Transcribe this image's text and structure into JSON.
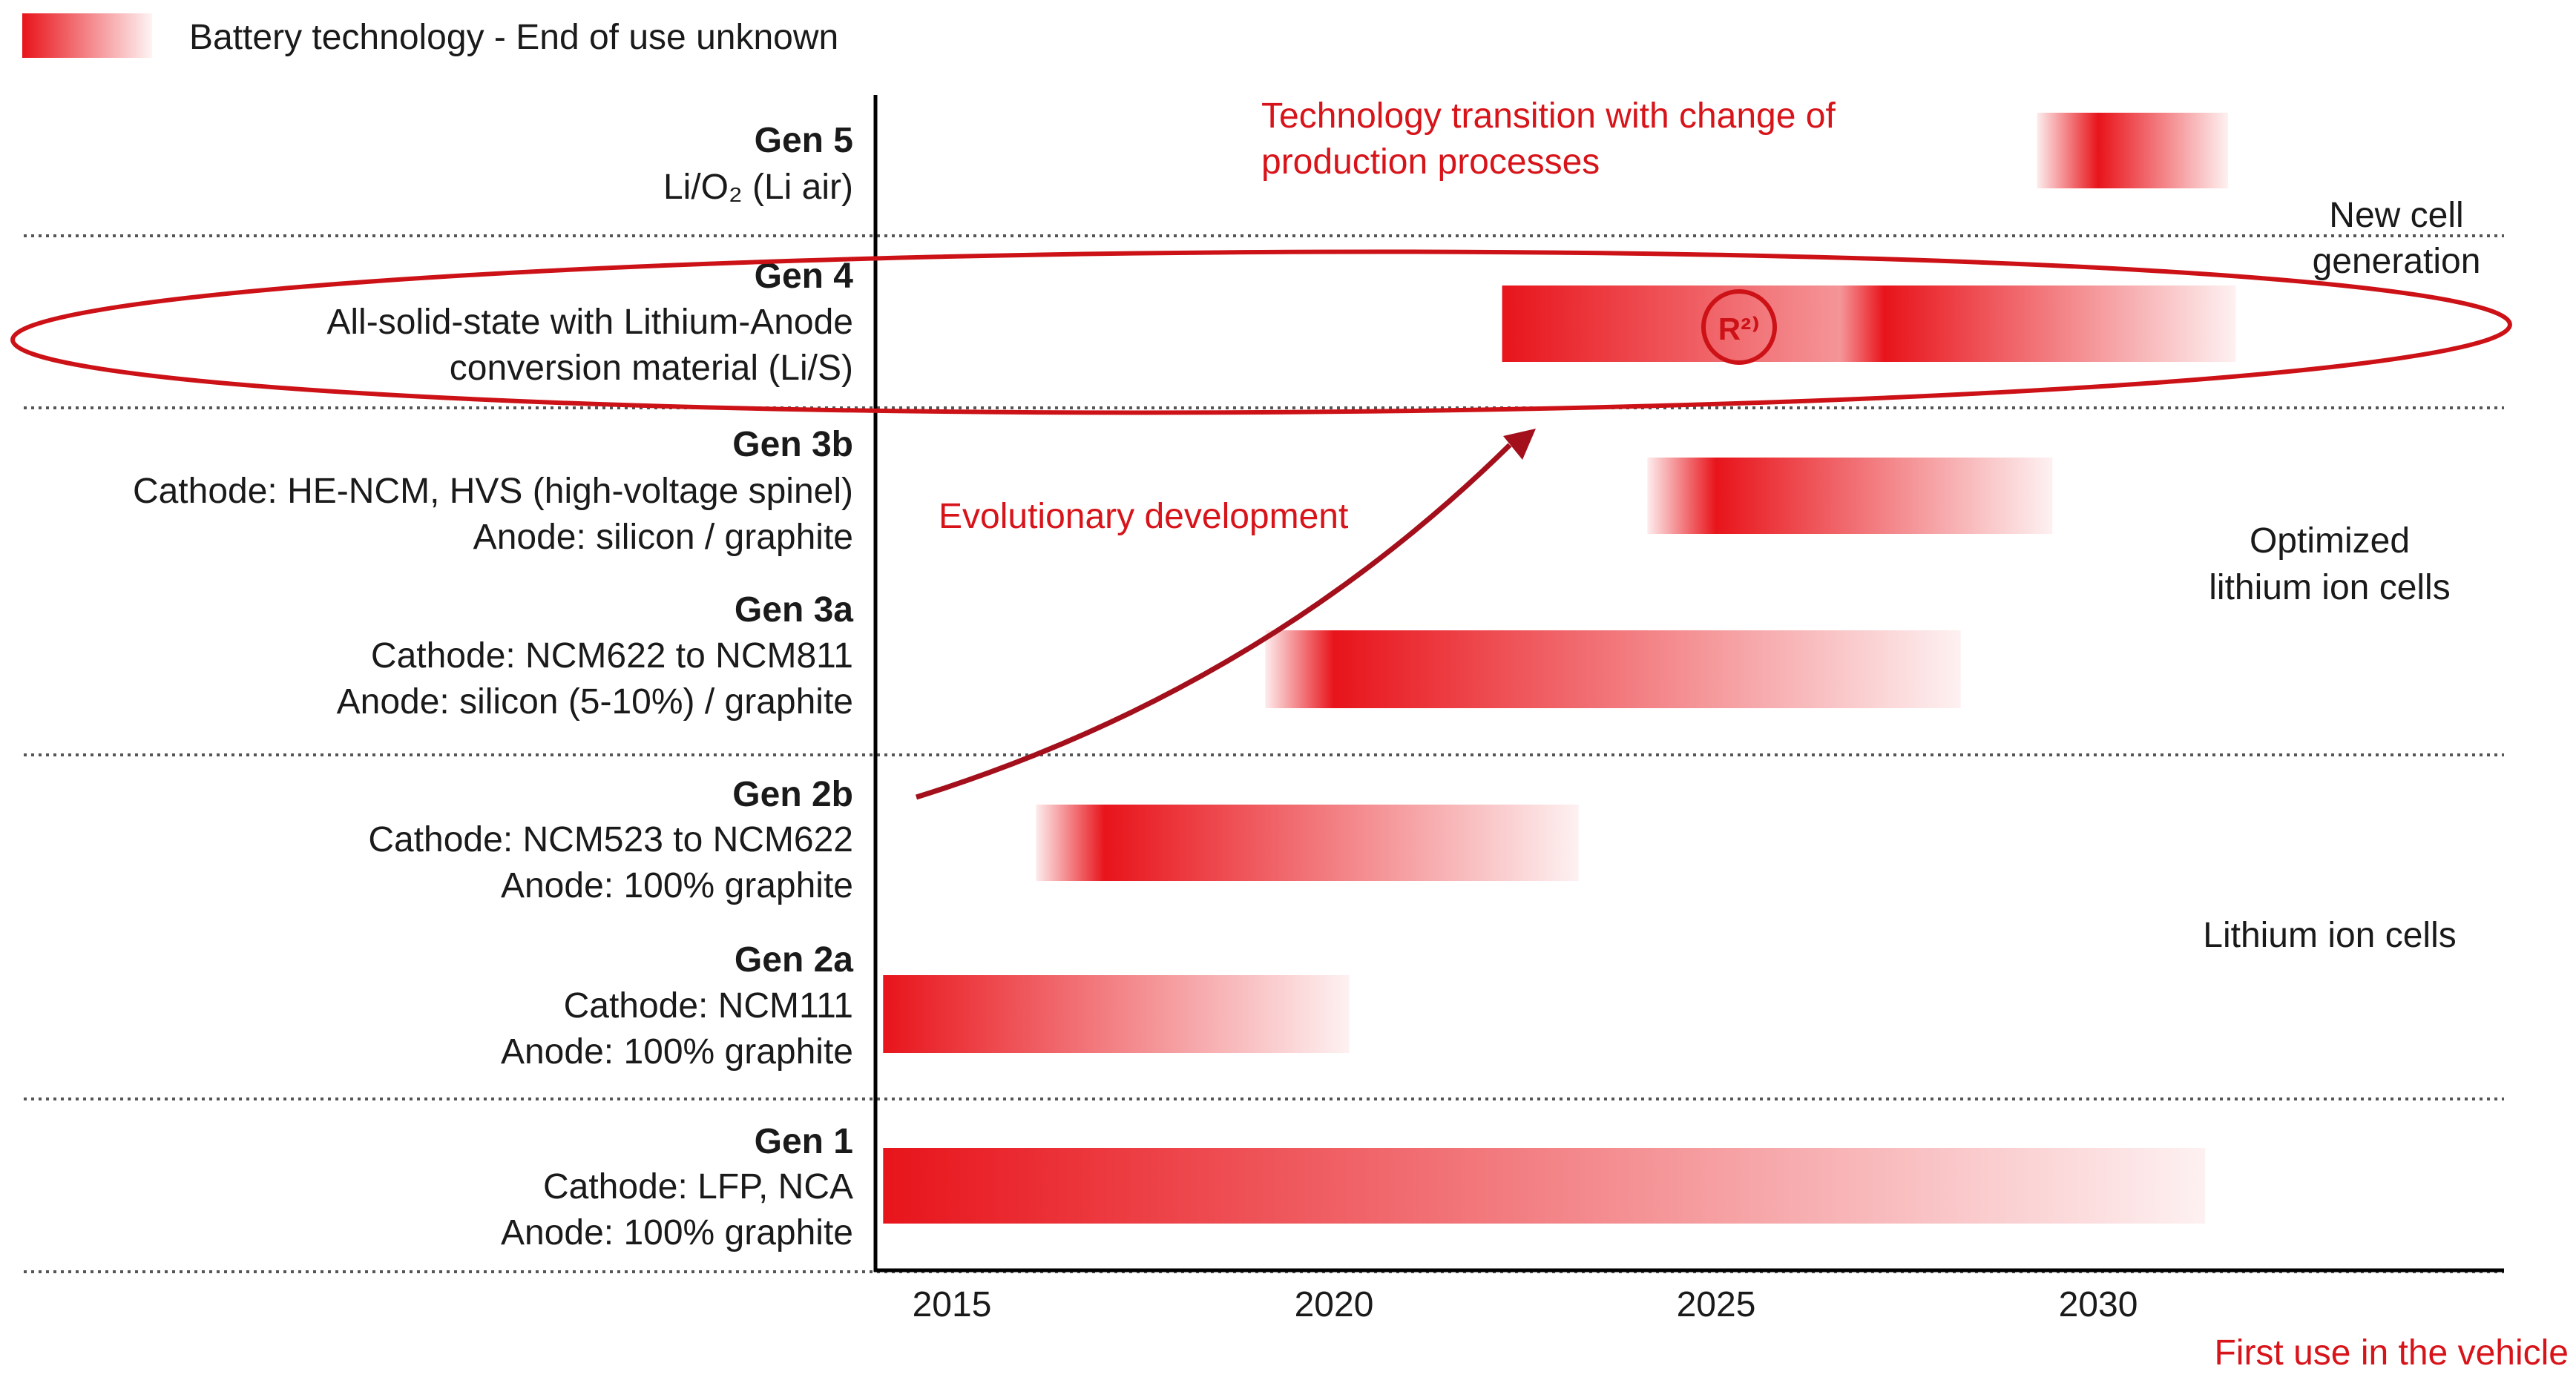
{
  "legend": {
    "label": "Battery technology - End of use unknown"
  },
  "chart_data": {
    "type": "timeline",
    "x_axis": {
      "label": "First use in the vehicle",
      "range": [
        2014,
        2035.5
      ],
      "ticks": [
        2015,
        2020,
        2025,
        2030
      ]
    },
    "rows": [
      {
        "id": "gen5",
        "title": "Gen 5",
        "lines": [
          "Li/O₂ (Li air)"
        ]
      },
      {
        "id": "gen4",
        "title": "Gen 4",
        "lines": [
          "All-solid-state with Lithium-Anode",
          "conversion material (Li/S)"
        ]
      },
      {
        "id": "gen3b",
        "title": "Gen 3b",
        "lines": [
          "Cathode: HE-NCM,  HVS (high-voltage spinel)",
          "Anode: silicon / graphite"
        ]
      },
      {
        "id": "gen3a",
        "title": "Gen 3a",
        "lines": [
          "Cathode: NCM622 to NCM811",
          "Anode: silicon (5-10%) / graphite"
        ]
      },
      {
        "id": "gen2b",
        "title": "Gen 2b",
        "lines": [
          "Cathode: NCM523 to NCM622",
          "Anode: 100% graphite"
        ]
      },
      {
        "id": "gen2a",
        "title": "Gen 2a",
        "lines": [
          "Cathode: NCM111",
          "Anode: 100% graphite"
        ]
      },
      {
        "id": "gen1",
        "title": "Gen 1",
        "lines": [
          "Cathode: LFP, NCA",
          "Anode: 100% graphite"
        ]
      }
    ],
    "bars": [
      {
        "row": "gen5",
        "fade_in_start": 2029.2,
        "peak": 2030.0,
        "end": 2031.7
      },
      {
        "row": "gen4",
        "fade_in_start": 2022.2,
        "peak": 2022.2,
        "second_peak": 2027.2,
        "end": 2031.8
      },
      {
        "row": "gen3b",
        "fade_in_start": 2024.1,
        "peak": 2025.0,
        "end": 2029.4
      },
      {
        "row": "gen3a",
        "fade_in_start": 2019.1,
        "peak": 2020.0,
        "end": 2028.2
      },
      {
        "row": "gen2b",
        "fade_in_start": 2016.1,
        "peak": 2017.0,
        "end": 2023.2
      },
      {
        "row": "gen2a",
        "fade_in_start": 2014.1,
        "peak": 2014.1,
        "end": 2020.2
      },
      {
        "row": "gen1",
        "fade_in_start": 2014.1,
        "peak": 2014.1,
        "end": 2031.4
      }
    ],
    "groups": [
      {
        "rows": [
          "gen5",
          "gen4"
        ],
        "lines": [
          "New cell",
          "generation"
        ]
      },
      {
        "rows": [
          "gen3b",
          "gen3a"
        ],
        "lines": [
          "Optimized",
          "lithium  ion cells"
        ]
      },
      {
        "rows": [
          "gen2b",
          "gen2a",
          "gen1"
        ],
        "lines": [
          "Lithium ion cells"
        ]
      }
    ],
    "annotations": {
      "transition": [
        "Technology transition with change of",
        "production processes"
      ],
      "evolution": "Evolutionary development",
      "badge": "R²⁾"
    },
    "colors": {
      "bar": "#e8141b",
      "annotation": "#d7141a",
      "ellipse": "#cc1217",
      "text": "#1a1a1a",
      "axis": "#000000",
      "divider": "#555555"
    }
  }
}
